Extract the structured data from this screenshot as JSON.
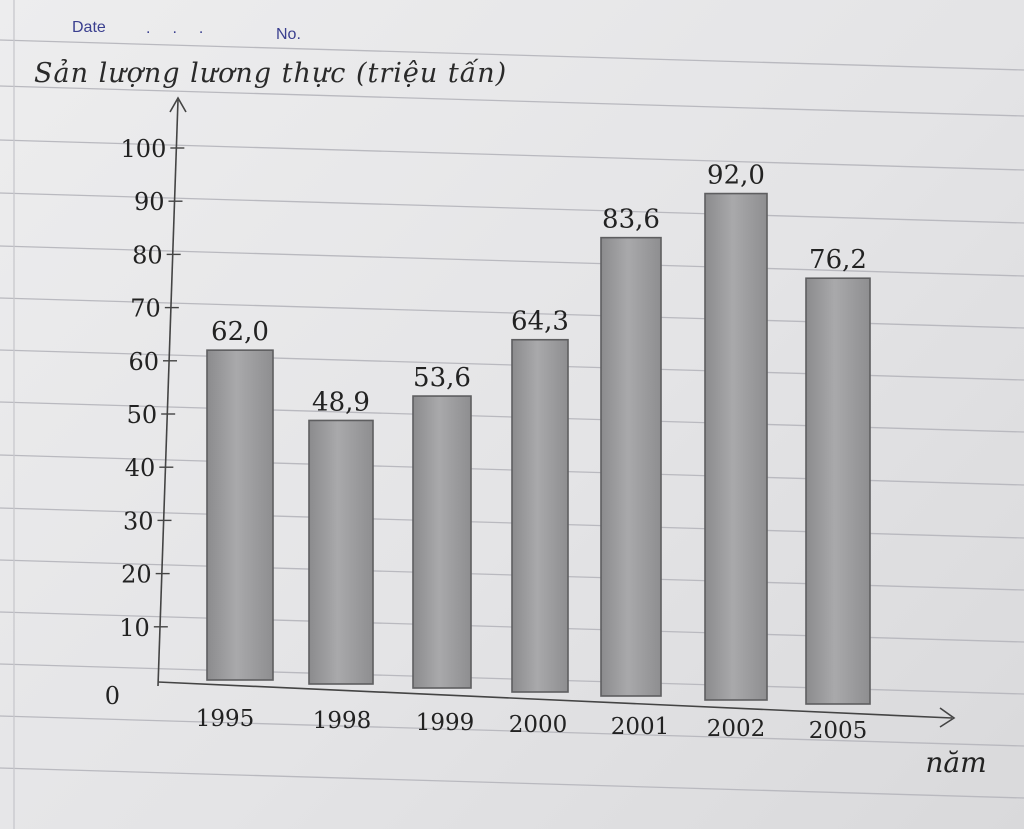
{
  "header": {
    "date_label": "Date",
    "no_label": "No."
  },
  "chart_data": {
    "type": "bar",
    "title": "Sản lượng lương thực (triệu tấn)",
    "xlabel": "năm",
    "ylabel": "",
    "categories": [
      "1995",
      "1998",
      "1999",
      "2000",
      "2001",
      "2002",
      "2005"
    ],
    "values": [
      62.0,
      48.9,
      53.6,
      64.3,
      83.6,
      92.0,
      76.2
    ],
    "value_labels": [
      "62,0",
      "48,9",
      "53,6",
      "64,3",
      "83,6",
      "92,0",
      "76,2"
    ],
    "yticks": [
      "0",
      "10",
      "20",
      "30",
      "40",
      "50",
      "60",
      "70",
      "80",
      "90",
      "100"
    ],
    "ylim": [
      0,
      100
    ],
    "grid": false,
    "colors": {
      "bar": "#9a9a9c",
      "bar_edge": "#5e5e60",
      "ink": "#222222",
      "header_ink": "#3a3f8f"
    }
  }
}
